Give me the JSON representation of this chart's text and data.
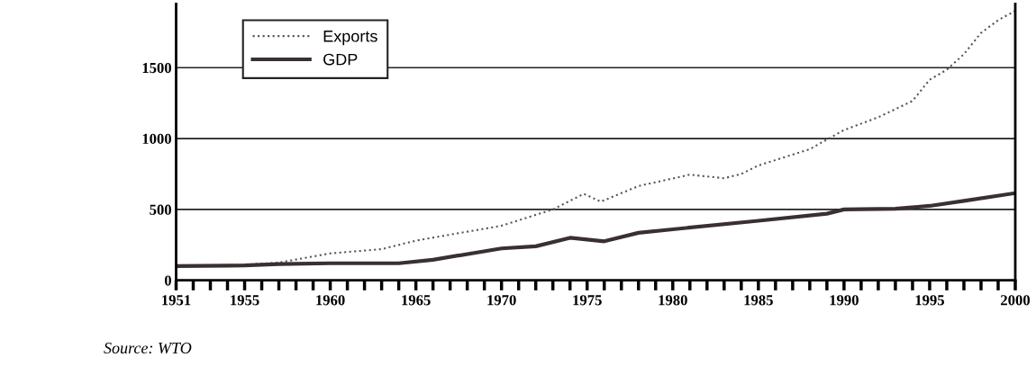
{
  "chart_data": {
    "type": "line",
    "xlim": [
      1951,
      2000
    ],
    "ylim": [
      0,
      1950
    ],
    "xticks": [
      1951,
      {
        "value": 1952,
        "label": null
      },
      {
        "value": 1953,
        "label": null
      },
      {
        "value": 1954,
        "label": null
      },
      1955,
      {
        "value": 1956,
        "label": null
      },
      {
        "value": 1957,
        "label": null
      },
      {
        "value": 1958,
        "label": null
      },
      {
        "value": 1959,
        "label": null
      },
      1960,
      {
        "value": 1961,
        "label": null
      },
      {
        "value": 1962,
        "label": null
      },
      {
        "value": 1963,
        "label": null
      },
      {
        "value": 1964,
        "label": null
      },
      1965,
      {
        "value": 1966,
        "label": null
      },
      {
        "value": 1967,
        "label": null
      },
      {
        "value": 1968,
        "label": null
      },
      {
        "value": 1969,
        "label": null
      },
      1970,
      {
        "value": 1971,
        "label": null
      },
      {
        "value": 1972,
        "label": null
      },
      {
        "value": 1973,
        "label": null
      },
      {
        "value": 1974,
        "label": null
      },
      1975,
      {
        "value": 1976,
        "label": null
      },
      {
        "value": 1977,
        "label": null
      },
      {
        "value": 1978,
        "label": null
      },
      {
        "value": 1979,
        "label": null
      },
      1980,
      {
        "value": 1981,
        "label": null
      },
      {
        "value": 1982,
        "label": null
      },
      {
        "value": 1983,
        "label": null
      },
      {
        "value": 1984,
        "label": null
      },
      1985,
      {
        "value": 1986,
        "label": null
      },
      {
        "value": 1987,
        "label": null
      },
      {
        "value": 1988,
        "label": null
      },
      {
        "value": 1989,
        "label": null
      },
      1990,
      {
        "value": 1991,
        "label": null
      },
      {
        "value": 1992,
        "label": null
      },
      {
        "value": 1993,
        "label": null
      },
      {
        "value": 1994,
        "label": null
      },
      1995,
      {
        "value": 1996,
        "label": null
      },
      {
        "value": 1997,
        "label": null
      },
      {
        "value": 1998,
        "label": null
      },
      {
        "value": 1999,
        "label": null
      },
      2000
    ],
    "yticks": [
      0,
      500,
      1000,
      1500
    ],
    "grid": "y",
    "legend": "top left",
    "series": [
      {
        "name": "Exports",
        "color": "#555555",
        "line_style": "dotted",
        "x": [
          1951,
          1955,
          1957,
          1960,
          1963,
          1965,
          1970,
          1973,
          1974.8,
          1975.8,
          1978,
          1981,
          1983,
          1984,
          1985,
          1988,
          1990,
          1992,
          1994,
          1995,
          1996,
          1997,
          1998,
          1999,
          2000
        ],
        "values": [
          100,
          110,
          125,
          190,
          220,
          280,
          385,
          500,
          610,
          555,
          665,
          745,
          720,
          750,
          810,
          925,
          1060,
          1150,
          1265,
          1415,
          1485,
          1595,
          1745,
          1835,
          1900
        ]
      },
      {
        "name": "GDP",
        "color": "#3a3030",
        "line_style": "solid",
        "x": [
          1951,
          1955,
          1957,
          1960,
          1964,
          1966,
          1970,
          1972,
          1974,
          1976,
          1978,
          1980,
          1985,
          1989,
          1990,
          1993,
          1995,
          1997,
          2000
        ],
        "values": [
          100,
          105,
          115,
          120,
          120,
          145,
          225,
          240,
          300,
          275,
          335,
          360,
          420,
          470,
          500,
          505,
          525,
          560,
          615
        ]
      }
    ],
    "annotations": [
      "Source: WTO"
    ]
  }
}
